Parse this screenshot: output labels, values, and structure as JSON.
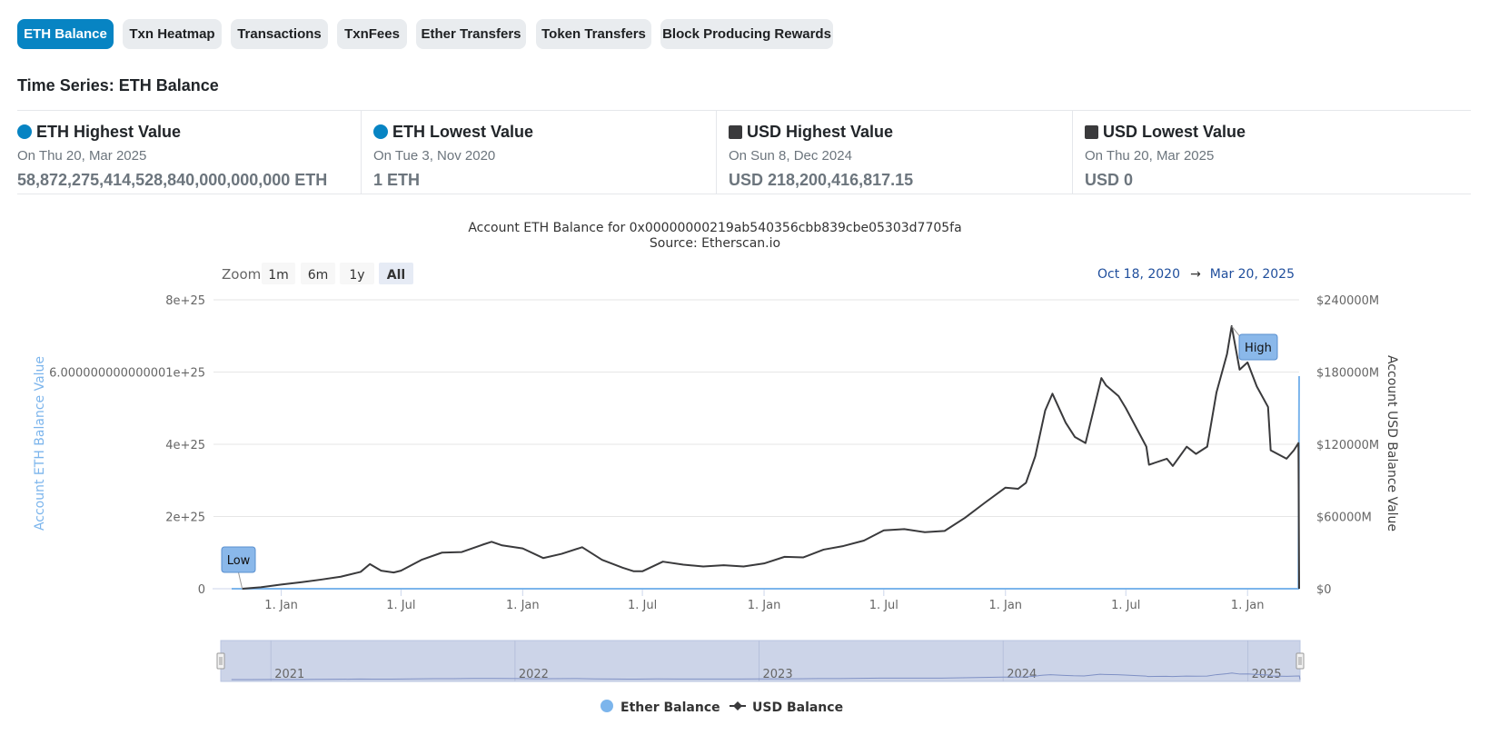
{
  "tabs": [
    {
      "label": "ETH Balance",
      "active": true
    },
    {
      "label": "Txn Heatmap",
      "active": false
    },
    {
      "label": "Transactions",
      "active": false
    },
    {
      "label": "TxnFees",
      "active": false
    },
    {
      "label": "Ether Transfers",
      "active": false
    },
    {
      "label": "Token Transfers",
      "active": false
    },
    {
      "label": "Block Producing Rewards",
      "active": false
    }
  ],
  "section_title": "Time Series: ETH Balance",
  "stats": [
    {
      "title": "ETH Highest Value",
      "date": "On Thu 20, Mar 2025",
      "value": "58,872,275,414,528,840,000,000,000 ETH",
      "marker": "dot",
      "color": "#0784c3"
    },
    {
      "title": "ETH Lowest Value",
      "date": "On Tue 3, Nov 2020",
      "value": "1 ETH",
      "marker": "dot",
      "color": "#0784c3"
    },
    {
      "title": "USD Highest Value",
      "date": "On Sun 8, Dec 2024",
      "value": "USD 218,200,416,817.15",
      "marker": "square",
      "color": "#3a3a3c"
    },
    {
      "title": "USD Lowest Value",
      "date": "On Thu 20, Mar 2025",
      "value": "USD 0",
      "marker": "square",
      "color": "#3a3a3c"
    }
  ],
  "chart_data": {
    "type": "line",
    "title": "Account ETH Balance for 0x00000000219ab540356cbb839cbe05303d7705fa",
    "subtitle": "Source: Etherscan.io",
    "zoom": {
      "label": "Zoom",
      "buttons": [
        "1m",
        "6m",
        "1y",
        "All"
      ],
      "active": "All"
    },
    "range": {
      "from": "Oct 18, 2020",
      "arrow": "→",
      "to": "Mar 20, 2025"
    },
    "ylabel_left": "Account ETH Balance Value",
    "ylabel_right": "Account USD Balance Value",
    "left_ticks": [
      "0",
      "2e+25",
      "4e+25",
      "6.000000000000001e+25",
      "8e+25"
    ],
    "right_ticks": [
      "$0",
      "$60000M",
      "$120000M",
      "$180000M",
      "$240000M"
    ],
    "x_ticks": [
      {
        "date": "2021-01-01",
        "label": "1. Jan"
      },
      {
        "date": "2021-07-01",
        "label": "1. Jul"
      },
      {
        "date": "2022-01-01",
        "label": "1. Jan"
      },
      {
        "date": "2022-07-01",
        "label": "1. Jul"
      },
      {
        "date": "2023-01-01",
        "label": "1. Jan"
      },
      {
        "date": "2023-07-01",
        "label": "1. Jul"
      },
      {
        "date": "2024-01-01",
        "label": "1. Jan"
      },
      {
        "date": "2024-07-01",
        "label": "1. Jul"
      },
      {
        "date": "2025-01-01",
        "label": "1. Jan"
      }
    ],
    "navigator_labels": [
      {
        "date": "2021-01-01",
        "label": "2021"
      },
      {
        "date": "2022-01-01",
        "label": "2022"
      },
      {
        "date": "2023-01-01",
        "label": "2023"
      },
      {
        "date": "2024-01-01",
        "label": "2024"
      },
      {
        "date": "2025-01-01",
        "label": "2025"
      }
    ],
    "x_range": [
      "2020-10-18",
      "2025-03-20"
    ],
    "y_left_range": [
      0,
      80000000000000000000000000
    ],
    "y_right_range": [
      0,
      240000
    ],
    "annotations": [
      {
        "text": "Low",
        "date": "2020-11-03",
        "series": "USD Balance",
        "value": 0
      },
      {
        "text": "High",
        "date": "2024-12-08",
        "series": "USD Balance",
        "value": 218200
      }
    ],
    "series": [
      {
        "name": "Ether Balance",
        "axis": "left",
        "color": "#7cb5ec",
        "points": [
          [
            "2020-10-18",
            0
          ],
          [
            "2025-03-19",
            0
          ],
          [
            "2025-03-20",
            58872275414528840000000000
          ]
        ]
      },
      {
        "name": "USD Balance",
        "axis": "right",
        "unit": "USD millions",
        "color": "#3a3a3c",
        "points": [
          [
            "2020-11-03",
            0
          ],
          [
            "2020-12-01",
            1200
          ],
          [
            "2021-01-01",
            3500
          ],
          [
            "2021-02-01",
            5500
          ],
          [
            "2021-03-01",
            7500
          ],
          [
            "2021-04-01",
            10000
          ],
          [
            "2021-05-01",
            14000
          ],
          [
            "2021-05-15",
            20500
          ],
          [
            "2021-06-01",
            15000
          ],
          [
            "2021-06-20",
            13500
          ],
          [
            "2021-07-01",
            15000
          ],
          [
            "2021-08-01",
            24000
          ],
          [
            "2021-09-01",
            30000
          ],
          [
            "2021-10-01",
            30500
          ],
          [
            "2021-11-01",
            36500
          ],
          [
            "2021-11-15",
            39000
          ],
          [
            "2021-12-01",
            36000
          ],
          [
            "2022-01-01",
            33500
          ],
          [
            "2022-02-01",
            25500
          ],
          [
            "2022-03-01",
            29000
          ],
          [
            "2022-04-01",
            34500
          ],
          [
            "2022-05-01",
            24000
          ],
          [
            "2022-06-01",
            17500
          ],
          [
            "2022-06-18",
            14500
          ],
          [
            "2022-07-01",
            14500
          ],
          [
            "2022-08-01",
            22500
          ],
          [
            "2022-09-01",
            20000
          ],
          [
            "2022-10-01",
            18500
          ],
          [
            "2022-11-01",
            19500
          ],
          [
            "2022-12-01",
            18500
          ],
          [
            "2023-01-01",
            21000
          ],
          [
            "2023-02-01",
            26500
          ],
          [
            "2023-03-01",
            26000
          ],
          [
            "2023-04-01",
            32500
          ],
          [
            "2023-05-01",
            35500
          ],
          [
            "2023-06-01",
            40000
          ],
          [
            "2023-07-01",
            48500
          ],
          [
            "2023-08-01",
            49500
          ],
          [
            "2023-09-01",
            47000
          ],
          [
            "2023-10-01",
            48000
          ],
          [
            "2023-11-01",
            59000
          ],
          [
            "2023-12-01",
            71500
          ],
          [
            "2024-01-01",
            84000
          ],
          [
            "2024-01-20",
            83000
          ],
          [
            "2024-02-01",
            88000
          ],
          [
            "2024-02-15",
            110000
          ],
          [
            "2024-03-01",
            148000
          ],
          [
            "2024-03-12",
            162000
          ],
          [
            "2024-04-01",
            138000
          ],
          [
            "2024-04-15",
            126000
          ],
          [
            "2024-05-01",
            121000
          ],
          [
            "2024-05-25",
            175000
          ],
          [
            "2024-06-01",
            169000
          ],
          [
            "2024-06-20",
            160000
          ],
          [
            "2024-07-01",
            150000
          ],
          [
            "2024-08-01",
            118000
          ],
          [
            "2024-08-05",
            103000
          ],
          [
            "2024-09-01",
            108000
          ],
          [
            "2024-09-10",
            102000
          ],
          [
            "2024-10-01",
            118000
          ],
          [
            "2024-10-15",
            112000
          ],
          [
            "2024-11-01",
            118000
          ],
          [
            "2024-11-15",
            163000
          ],
          [
            "2024-12-01",
            195000
          ],
          [
            "2024-12-08",
            218200
          ],
          [
            "2024-12-20",
            182000
          ],
          [
            "2025-01-01",
            188000
          ],
          [
            "2025-01-15",
            168000
          ],
          [
            "2025-02-01",
            151000
          ],
          [
            "2025-02-05",
            115000
          ],
          [
            "2025-03-01",
            108000
          ],
          [
            "2025-03-12",
            115000
          ],
          [
            "2025-03-19",
            121000
          ],
          [
            "2025-03-20",
            0
          ]
        ]
      }
    ],
    "legend": [
      "Ether Balance",
      "USD Balance"
    ],
    "legend_position": "bottom-center",
    "navigator": true,
    "grid": true
  }
}
